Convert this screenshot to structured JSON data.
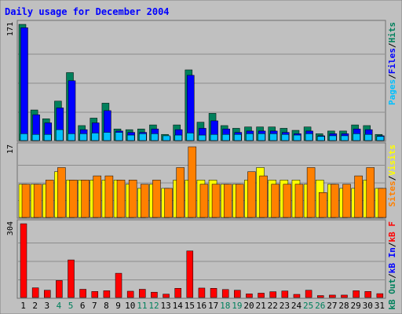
{
  "chart_data": {
    "type": "bar",
    "title": "Daily usage for December 2004",
    "categories": [
      "1",
      "2",
      "3",
      "4",
      "5",
      "6",
      "7",
      "8",
      "9",
      "10",
      "11",
      "12",
      "13",
      "14",
      "15",
      "16",
      "17",
      "18",
      "19",
      "20",
      "21",
      "22",
      "23",
      "24",
      "25",
      "26",
      "27",
      "28",
      "29",
      "30",
      "31"
    ],
    "weekend_days": [
      "4",
      "5",
      "11",
      "12",
      "18",
      "19",
      "25",
      "26"
    ],
    "panels": [
      {
        "name": "top",
        "ymax_label": "171",
        "ymax": 171,
        "legend": [
          {
            "text": "Hits",
            "color": "#00805c"
          },
          {
            "text": "/",
            "color": "#000000"
          },
          {
            "text": "Files",
            "color": "#0000ff"
          },
          {
            "text": "/",
            "color": "#000000"
          },
          {
            "text": "Pages",
            "color": "#00c0ff"
          }
        ],
        "series": [
          {
            "name": "Hits",
            "color": "#00805c",
            "values": [
              171,
              45,
              32,
              58,
              100,
              22,
              33,
              55,
              17,
              16,
              17,
              23,
              9,
              23,
              104,
              27,
              40,
              22,
              18,
              20,
              20,
              20,
              18,
              15,
              20,
              10,
              14,
              14,
              23,
              22,
              9
            ]
          },
          {
            "name": "Files",
            "color": "#0000ff",
            "values": [
              166,
              38,
              26,
              48,
              88,
              16,
              26,
              44,
              14,
              12,
              12,
              17,
              6,
              16,
              96,
              18,
              29,
              17,
              12,
              14,
              14,
              14,
              12,
              10,
              14,
              7,
              10,
              10,
              17,
              16,
              7
            ]
          },
          {
            "name": "Pages",
            "color": "#00c0ff",
            "values": [
              10,
              9,
              9,
              16,
              10,
              10,
              11,
              12,
              12,
              8,
              10,
              10,
              7,
              8,
              11,
              8,
              9,
              9,
              9,
              10,
              10,
              10,
              9,
              8,
              10,
              6,
              7,
              7,
              10,
              9,
              6
            ]
          }
        ]
      },
      {
        "name": "middle",
        "ymax_label": "17",
        "ymax": 17,
        "legend": [
          {
            "text": "Visits",
            "color": "#ffff00"
          },
          {
            "text": "/",
            "color": "#000000"
          },
          {
            "text": "Sites",
            "color": "#ff8000"
          }
        ],
        "series": [
          {
            "name": "Visits",
            "color": "#ffff00",
            "values": [
              8,
              8,
              8,
              11,
              9,
              9,
              9,
              9,
              9,
              8,
              7,
              8,
              7,
              9,
              9,
              9,
              9,
              8,
              8,
              9,
              12,
              9,
              9,
              9,
              8,
              9,
              8,
              7,
              7,
              9,
              7
            ]
          },
          {
            "name": "Sites",
            "color": "#ff8000",
            "values": [
              8,
              8,
              9,
              12,
              9,
              9,
              10,
              10,
              9,
              9,
              8,
              9,
              7,
              12,
              17,
              8,
              8,
              8,
              8,
              11,
              10,
              8,
              8,
              8,
              12,
              6,
              8,
              8,
              10,
              12,
              7
            ]
          }
        ]
      },
      {
        "name": "bottom",
        "ymax_label": "304",
        "ymax": 304,
        "legend": [
          {
            "text": "kB F",
            "color": "#ff0000"
          },
          {
            "text": "/",
            "color": "#000000"
          },
          {
            "text": "kB In",
            "color": "#0000ff"
          },
          {
            "text": "/",
            "color": "#000000"
          },
          {
            "text": "kB Out",
            "color": "#00805c"
          }
        ],
        "series": [
          {
            "name": "kB F",
            "color": "#ff0000",
            "values": [
              304,
              40,
              30,
              70,
              155,
              34,
              25,
              28,
              100,
              26,
              34,
              22,
              14,
              38,
              192,
              39,
              38,
              33,
              30,
              15,
              18,
              24,
              27,
              13,
              30,
              8,
              10,
              10,
              28,
              25,
              16
            ]
          }
        ]
      }
    ]
  }
}
